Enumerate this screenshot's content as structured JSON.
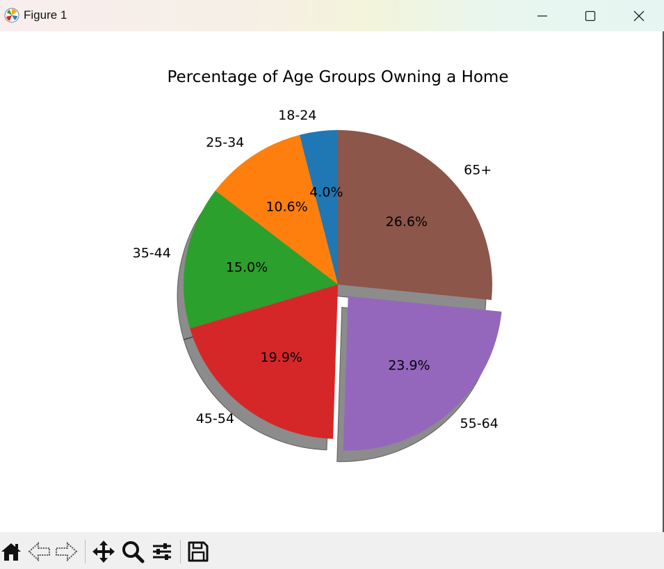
{
  "window": {
    "title": "Figure 1",
    "minimize_icon": "minimize-icon",
    "maximize_icon": "maximize-icon",
    "close_icon": "close-icon"
  },
  "toolbar": {
    "buttons": [
      {
        "name": "home-icon"
      },
      {
        "name": "back-icon"
      },
      {
        "name": "forward-icon"
      },
      {
        "name": "pan-icon"
      },
      {
        "name": "zoom-icon"
      },
      {
        "name": "configure-subplots-icon"
      },
      {
        "name": "save-icon"
      }
    ]
  },
  "chart_data": {
    "type": "pie",
    "title": "Percentage of Age Groups Owning a Home",
    "categories": [
      "18-24",
      "25-34",
      "35-44",
      "45-54",
      "55-64",
      "65+"
    ],
    "values": [
      4.0,
      10.6,
      15.0,
      19.9,
      23.9,
      26.6
    ],
    "autopct_labels": [
      "4.0%",
      "10.6%",
      "15.0%",
      "19.9%",
      "23.9%",
      "26.6%"
    ],
    "colors": [
      "#1f77b4",
      "#ff7f0e",
      "#2ca02c",
      "#d62728",
      "#9467bd",
      "#8c564b"
    ],
    "explode": [
      0,
      0,
      0,
      0,
      0.1,
      0
    ],
    "start_angle_deg": 90,
    "direction": "counterclockwise",
    "shadow": true
  }
}
